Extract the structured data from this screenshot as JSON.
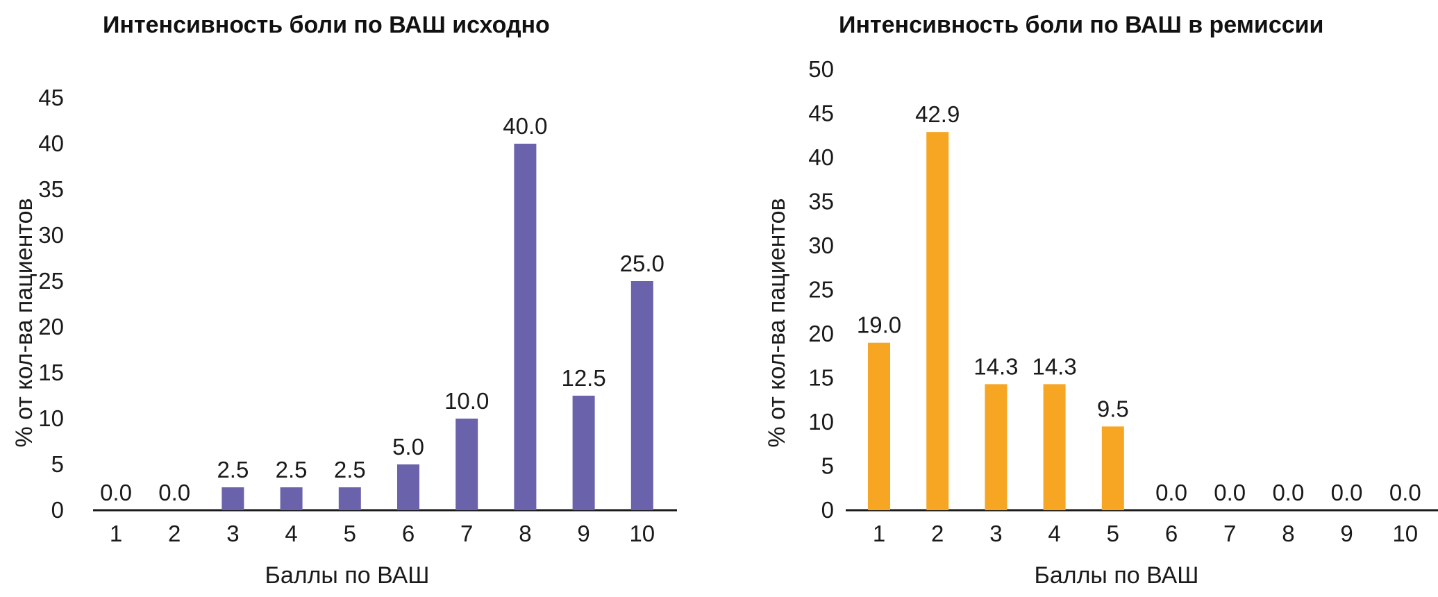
{
  "chart_data": [
    {
      "type": "bar",
      "title": "Интенсивность боли по ВАШ исходно",
      "xlabel": "Баллы по ВАШ",
      "ylabel": "% от кол-ва пациентов",
      "categories": [
        "1",
        "2",
        "3",
        "4",
        "5",
        "6",
        "7",
        "8",
        "9",
        "10"
      ],
      "values": [
        0.0,
        0.0,
        2.5,
        2.5,
        2.5,
        5.0,
        10.0,
        40.0,
        12.5,
        25.0
      ],
      "data_labels": [
        "0.0",
        "0.0",
        "2.5",
        "2.5",
        "2.5",
        "5.0",
        "10.0",
        "40.0",
        "12.5",
        "25.0"
      ],
      "yticks": [
        "0",
        "5",
        "10",
        "15",
        "20",
        "25",
        "30",
        "35",
        "40",
        "45"
      ],
      "ylim": [
        0,
        45
      ],
      "grid": false,
      "color": "#6a62aa"
    },
    {
      "type": "bar",
      "title": "Интенсивность боли по ВАШ в ремиссии",
      "xlabel": "Баллы по ВАШ",
      "ylabel": "% от кол-ва пациентов",
      "categories": [
        "1",
        "2",
        "3",
        "4",
        "5",
        "6",
        "7",
        "8",
        "9",
        "10"
      ],
      "values": [
        19.0,
        42.9,
        14.3,
        14.3,
        9.5,
        0.0,
        0.0,
        0.0,
        0.0,
        0.0
      ],
      "data_labels": [
        "19.0",
        "42.9",
        "14.3",
        "14.3",
        "9.5",
        "0.0",
        "0.0",
        "0.0",
        "0.0",
        "0.0"
      ],
      "yticks": [
        "0",
        "5",
        "10",
        "15",
        "20",
        "25",
        "30",
        "35",
        "40",
        "45",
        "50"
      ],
      "ylim": [
        0,
        50
      ],
      "grid": false,
      "color": "#f6a623"
    }
  ]
}
